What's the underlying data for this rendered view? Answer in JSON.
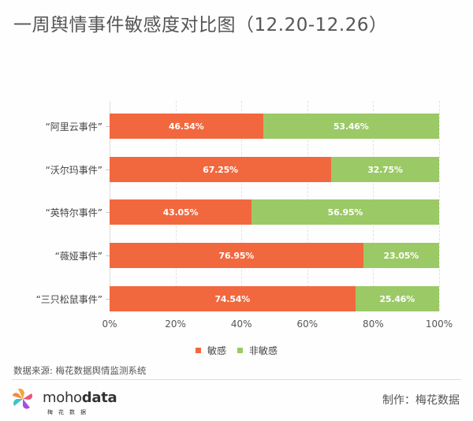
{
  "title": "一周舆情事件敏感度对比图（12.20-12.26）",
  "colors": {
    "sensitive": "#f2683e",
    "non_sensitive": "#9bc966"
  },
  "legend": {
    "items": [
      {
        "label": "敏感",
        "color": "#f2683e"
      },
      {
        "label": "非敏感",
        "color": "#9bc966"
      }
    ]
  },
  "categories": [
    "“阿里云事件”",
    "“沃尔玛事件”",
    "“英特尔事件”",
    "“薇娅事件”",
    "“三只松鼠事件”"
  ],
  "bars": [
    {
      "sensitive": 46.54,
      "non_sensitive": 53.46,
      "sensitive_label": "46.54%",
      "non_sensitive_label": "53.46%"
    },
    {
      "sensitive": 67.25,
      "non_sensitive": 32.75,
      "sensitive_label": "67.25%",
      "non_sensitive_label": "32.75%"
    },
    {
      "sensitive": 43.05,
      "non_sensitive": 56.95,
      "sensitive_label": "43.05%",
      "non_sensitive_label": "56.95%"
    },
    {
      "sensitive": 76.95,
      "non_sensitive": 23.05,
      "sensitive_label": "76.95%",
      "non_sensitive_label": "23.05%"
    },
    {
      "sensitive": 74.54,
      "non_sensitive": 25.46,
      "sensitive_label": "74.54%",
      "non_sensitive_label": "25.46%"
    }
  ],
  "x_ticks": [
    "0%",
    "20%",
    "40%",
    "60%",
    "80%",
    "100%"
  ],
  "source": "数据来源: 梅花数据舆情监测系统",
  "footer": {
    "brand_light": "moho",
    "brand_bold": "data",
    "brand_sub": "梅花数据",
    "credit": "制作：梅花数据"
  },
  "chart_data": {
    "type": "bar",
    "orientation": "horizontal",
    "stacked": true,
    "title": "一周舆情事件敏感度对比图（12.20-12.26）",
    "categories": [
      "“阿里云事件”",
      "“沃尔玛事件”",
      "“英特尔事件”",
      "“薇娅事件”",
      "“三只松鼠事件”"
    ],
    "series": [
      {
        "name": "敏感",
        "color": "#f2683e",
        "values": [
          46.54,
          67.25,
          43.05,
          76.95,
          74.54
        ]
      },
      {
        "name": "非敏感",
        "color": "#9bc966",
        "values": [
          53.46,
          32.75,
          56.95,
          23.05,
          25.46
        ]
      }
    ],
    "xlabel": "",
    "ylabel": "",
    "xlim": [
      0,
      100
    ],
    "x_tick_labels": [
      "0%",
      "20%",
      "40%",
      "60%",
      "80%",
      "100%"
    ],
    "grid": "vertical dashed",
    "legend_position": "bottom",
    "data_labels": true,
    "source": "数据来源: 梅花数据舆情监测系统"
  }
}
